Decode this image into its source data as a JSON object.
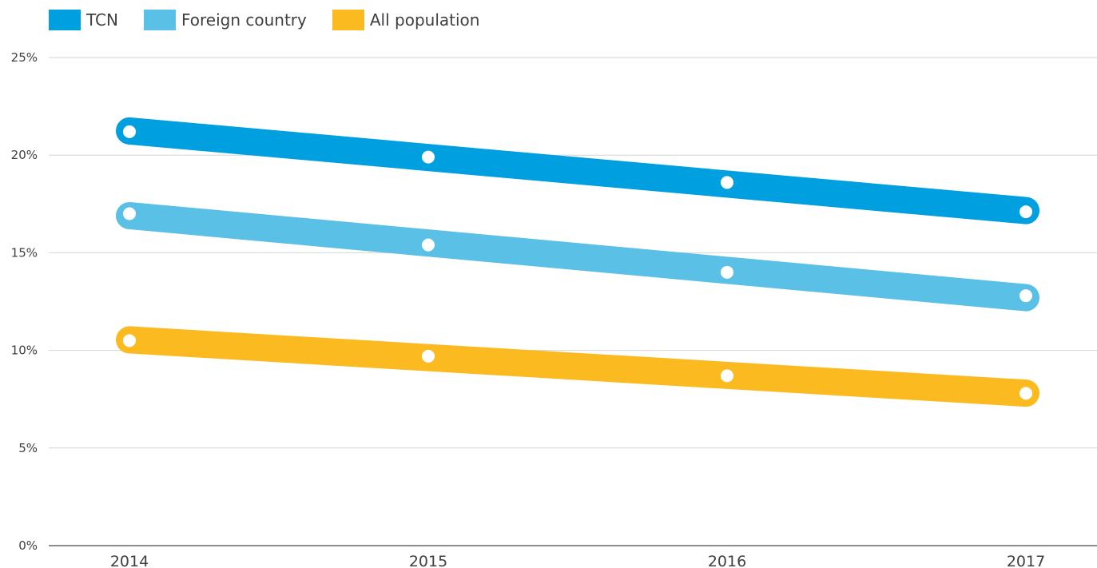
{
  "chart_data": {
    "type": "line",
    "x": [
      "2014",
      "2015",
      "2016",
      "2017"
    ],
    "series": [
      {
        "name": "TCN",
        "color": "#009FE0",
        "values": [
          21.2,
          19.9,
          18.6,
          17.1
        ]
      },
      {
        "name": "Foreign country",
        "color": "#5BC0E6",
        "values": [
          17.0,
          15.4,
          14.0,
          12.8
        ]
      },
      {
        "name": "All population",
        "color": "#FBBA1F",
        "values": [
          10.5,
          9.7,
          8.7,
          7.8
        ]
      }
    ],
    "ylim": [
      0,
      25
    ],
    "yticks": [
      "0%",
      "5%",
      "10%",
      "15%",
      "20%",
      "25%"
    ],
    "ytick_values": [
      0,
      5,
      10,
      15,
      20,
      25
    ],
    "grid": true,
    "legend_position": "top-left",
    "title": "",
    "xlabel": "",
    "ylabel": ""
  }
}
